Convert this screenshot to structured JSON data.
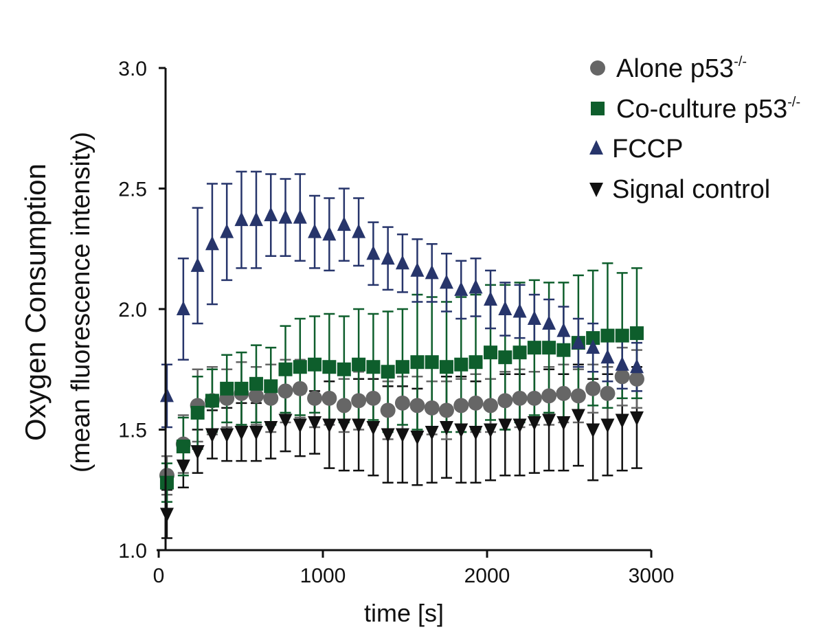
{
  "chart_data": {
    "type": "scatter",
    "xlabel": "time [s]",
    "ylabel_line1": "Oxygen Consumption",
    "ylabel_line2": "(mean fluorescence intensity)",
    "xlim": [
      0,
      3000
    ],
    "ylim": [
      1.0,
      3.0
    ],
    "x_ticks": [
      0,
      1000,
      2000,
      3000
    ],
    "x_tick_labels": [
      "0",
      "1000",
      "2000",
      "3000"
    ],
    "y_ticks": [
      1.0,
      1.5,
      2.0,
      2.5,
      3.0
    ],
    "y_tick_labels": [
      "1.0",
      "1.5",
      "2.0",
      "2.5",
      "3.0"
    ],
    "grid": false,
    "legend_position": "top-right",
    "x": [
      50,
      150,
      237,
      326,
      415,
      504,
      594,
      683,
      772,
      861,
      950,
      1039,
      1129,
      1218,
      1307,
      1396,
      1485,
      1575,
      1664,
      1753,
      1842,
      1931,
      2021,
      2110,
      2199,
      2288,
      2377,
      2466,
      2556,
      2645,
      2734,
      2823,
      2912
    ],
    "series": [
      {
        "name": "Alone p53",
        "name_sup": "-/-",
        "marker": "circle",
        "color": "#666666",
        "values": [
          1.31,
          1.44,
          1.6,
          1.62,
          1.63,
          1.65,
          1.64,
          1.63,
          1.66,
          1.67,
          1.63,
          1.63,
          1.6,
          1.62,
          1.63,
          1.58,
          1.61,
          1.6,
          1.59,
          1.58,
          1.6,
          1.61,
          1.6,
          1.62,
          1.63,
          1.63,
          1.64,
          1.65,
          1.64,
          1.67,
          1.65,
          1.72,
          1.71
        ],
        "errors": [
          0.08,
          0.12,
          0.15,
          0.14,
          0.12,
          0.13,
          0.12,
          0.14,
          0.13,
          0.12,
          0.12,
          0.11,
          0.11,
          0.12,
          0.11,
          0.12,
          0.11,
          0.12,
          0.11,
          0.12,
          0.11,
          0.12,
          0.11,
          0.12,
          0.12,
          0.11,
          0.12,
          0.12,
          0.11,
          0.1,
          0.11,
          0.12,
          0.12
        ]
      },
      {
        "name": "Co-culture p53",
        "name_sup": "-/-",
        "marker": "square",
        "color": "#0e5e2c",
        "values": [
          1.28,
          1.43,
          1.57,
          1.62,
          1.67,
          1.67,
          1.69,
          1.68,
          1.75,
          1.76,
          1.77,
          1.76,
          1.75,
          1.77,
          1.76,
          1.74,
          1.76,
          1.78,
          1.78,
          1.76,
          1.77,
          1.78,
          1.82,
          1.8,
          1.82,
          1.84,
          1.84,
          1.83,
          1.86,
          1.88,
          1.89,
          1.89,
          1.9
        ],
        "errors": [
          0.08,
          0.12,
          0.15,
          0.13,
          0.14,
          0.15,
          0.16,
          0.16,
          0.18,
          0.2,
          0.2,
          0.22,
          0.22,
          0.23,
          0.22,
          0.25,
          0.24,
          0.28,
          0.27,
          0.27,
          0.28,
          0.28,
          0.28,
          0.3,
          0.29,
          0.28,
          0.27,
          0.28,
          0.28,
          0.28,
          0.3,
          0.26,
          0.27
        ]
      },
      {
        "name": "FCCP",
        "name_sup": "",
        "marker": "triangle-up",
        "color": "#27356b",
        "values": [
          1.64,
          2.0,
          2.18,
          2.27,
          2.32,
          2.37,
          2.37,
          2.39,
          2.38,
          2.38,
          2.32,
          2.31,
          2.35,
          2.32,
          2.23,
          2.21,
          2.19,
          2.16,
          2.15,
          2.11,
          2.08,
          2.09,
          2.04,
          2.0,
          1.99,
          1.96,
          1.94,
          1.91,
          1.86,
          1.84,
          1.8,
          1.77,
          1.76
        ],
        "errors": [
          0.13,
          0.21,
          0.24,
          0.25,
          0.2,
          0.2,
          0.2,
          0.17,
          0.16,
          0.18,
          0.15,
          0.15,
          0.15,
          0.14,
          0.13,
          0.13,
          0.12,
          0.13,
          0.12,
          0.12,
          0.12,
          0.12,
          0.12,
          0.11,
          0.11,
          0.1,
          0.1,
          0.1,
          0.1,
          0.1,
          0.1,
          0.1,
          0.1
        ]
      },
      {
        "name": "Signal control",
        "name_sup": "",
        "marker": "triangle-down",
        "color": "#111111",
        "values": [
          1.15,
          1.35,
          1.41,
          1.48,
          1.48,
          1.49,
          1.49,
          1.51,
          1.54,
          1.52,
          1.53,
          1.52,
          1.52,
          1.52,
          1.51,
          1.48,
          1.48,
          1.47,
          1.49,
          1.51,
          1.5,
          1.49,
          1.5,
          1.52,
          1.52,
          1.53,
          1.54,
          1.53,
          1.56,
          1.5,
          1.52,
          1.54,
          1.55
        ],
        "errors": [
          0.1,
          0.09,
          0.09,
          0.1,
          0.11,
          0.12,
          0.12,
          0.13,
          0.13,
          0.13,
          0.13,
          0.18,
          0.19,
          0.19,
          0.2,
          0.2,
          0.2,
          0.2,
          0.21,
          0.21,
          0.22,
          0.21,
          0.21,
          0.21,
          0.21,
          0.21,
          0.21,
          0.2,
          0.21,
          0.21,
          0.21,
          0.21,
          0.21
        ]
      }
    ]
  }
}
